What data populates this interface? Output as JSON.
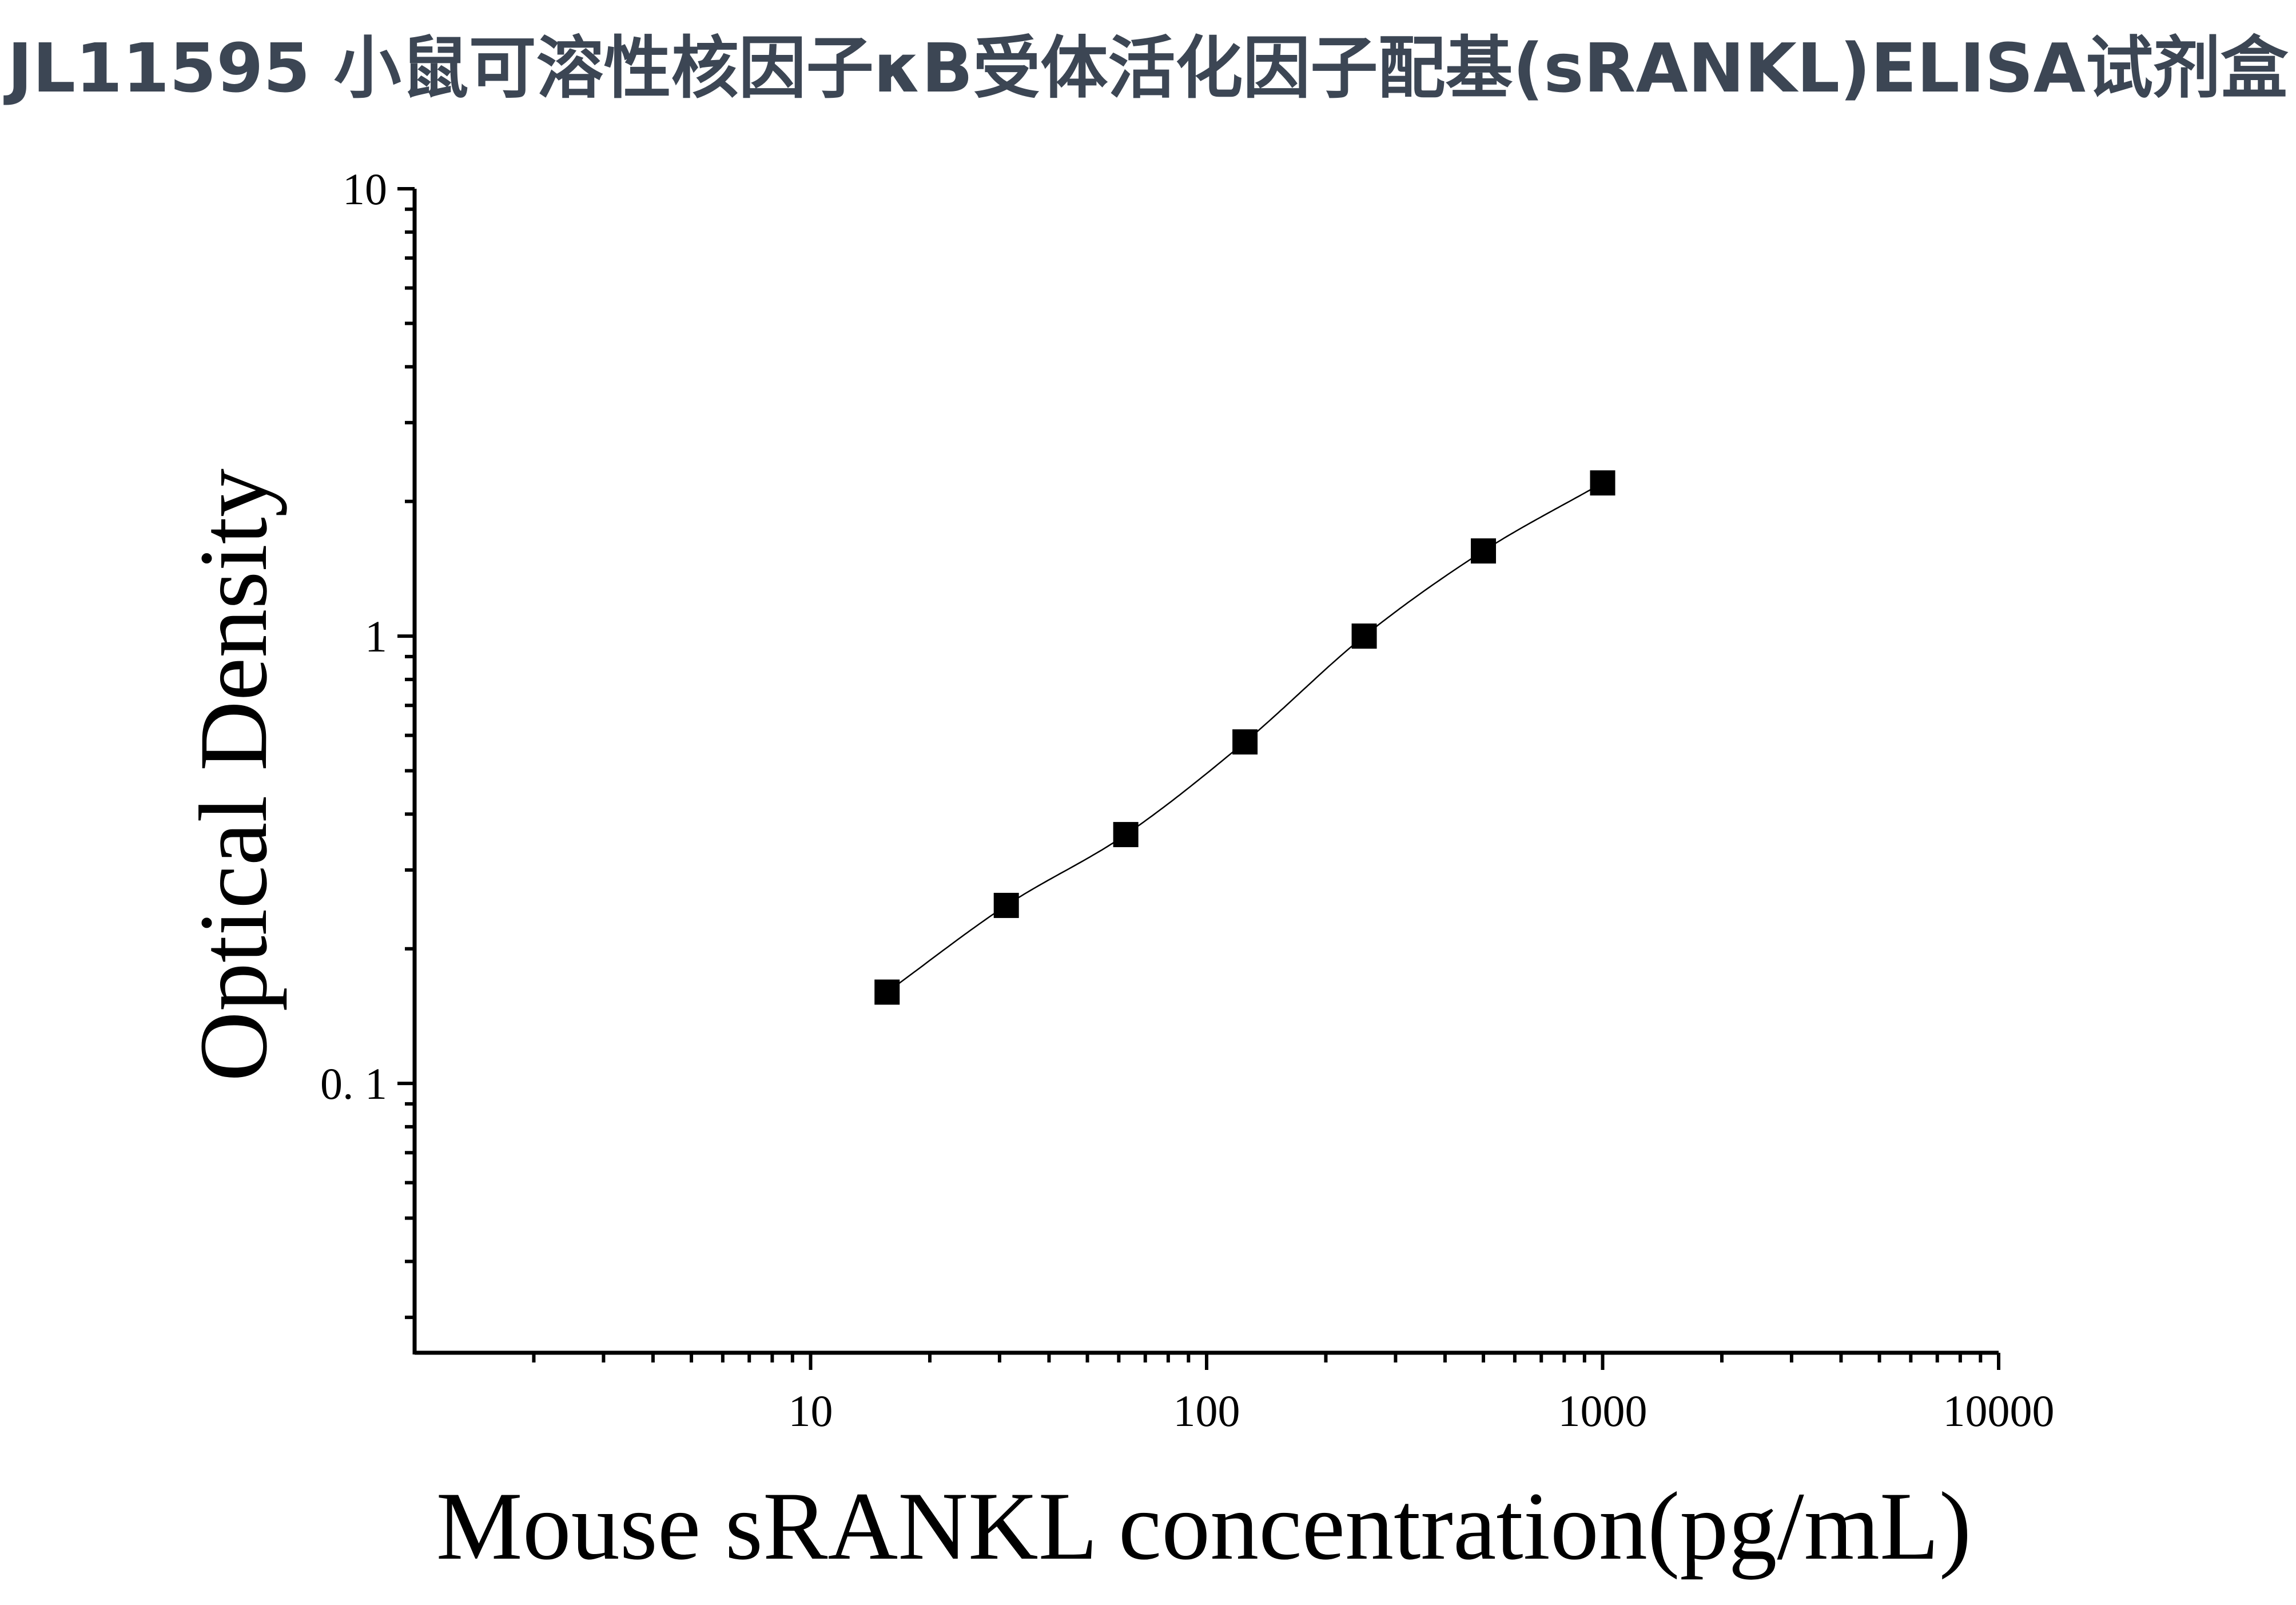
{
  "chart_data": {
    "type": "scatter",
    "title": "JL11595 小鼠可溶性核因子κB受体活化因子配基(sRANKL)ELISA试剂盒",
    "xlabel": "Mouse sRANKL concentration(pg/mL)",
    "ylabel": "Optical Density",
    "x_scale": "log",
    "y_scale": "log",
    "xlim": [
      1,
      10000
    ],
    "ylim": [
      0.025,
      10
    ],
    "x_ticks": [
      {
        "value": 10,
        "label": "10"
      },
      {
        "value": 100,
        "label": "100"
      },
      {
        "value": 1000,
        "label": "1000"
      },
      {
        "value": 10000,
        "label": "10000"
      }
    ],
    "y_ticks": [
      {
        "value": 0.1,
        "label": "0. 1"
      },
      {
        "value": 1,
        "label": "1"
      },
      {
        "value": 10,
        "label": "10"
      }
    ],
    "grid": false,
    "legend": "none",
    "series": [
      {
        "marker": "square",
        "fit_line": true,
        "x": [
          15.6,
          31.2,
          62.5,
          125,
          250,
          500,
          1000
        ],
        "y": [
          0.16,
          0.25,
          0.36,
          0.58,
          1.0,
          1.55,
          2.2
        ]
      }
    ],
    "colors": {
      "title": "#3c4654",
      "axis": "#000000",
      "marker": "#000000",
      "line": "#000000"
    }
  }
}
